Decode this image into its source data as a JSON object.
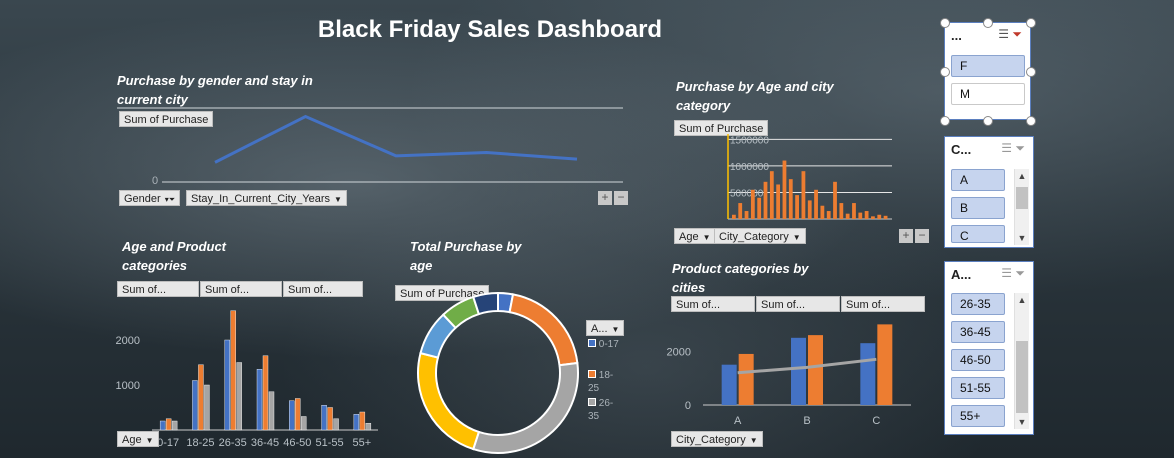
{
  "title": "Black Friday Sales Dashboard",
  "gender_chart": {
    "title": "Purchase by gender and stay in current city",
    "value_button": "Sum of Purchase",
    "row_button_1": "Gender",
    "row_button_2": "Stay_In_Current_City_Years",
    "axis_zero": "0",
    "plus": "+",
    "minus": "−"
  },
  "city_chart": {
    "title": "Purchase by Age and city category",
    "value_button": "Sum of Purchase",
    "row_button_1": "Age",
    "row_button_2": "City_Category",
    "ticks": [
      "1500000",
      "1000000",
      "500000"
    ],
    "plus": "+",
    "minus": "−"
  },
  "age_chart": {
    "title": "Age and Product categories",
    "value_buttons": [
      "Sum of...",
      "Sum of...",
      "Sum of..."
    ],
    "row_button": "Age",
    "ticks": [
      "2000",
      "1000"
    ]
  },
  "donut_chart": {
    "title": "Total Purchase by age",
    "value_button": "Sum of Purchase",
    "legend_button": "A...",
    "legend": [
      {
        "label": "0-17",
        "color": "#4472c4"
      },
      {
        "label": "18-25",
        "color": "#ed7d31"
      },
      {
        "label": "26-35",
        "color": "#a5a5a5"
      }
    ]
  },
  "cities_chart": {
    "title": "Product categories by cities",
    "value_buttons": [
      "Sum of...",
      "Sum of...",
      "Sum of..."
    ],
    "row_button": "City_Category",
    "ticks": [
      "2000",
      "0"
    ]
  },
  "slicers": {
    "gender": {
      "header": "...",
      "items": [
        {
          "label": "F",
          "selected": true
        },
        {
          "label": "M",
          "selected": false
        }
      ]
    },
    "city": {
      "header": "C...",
      "items": [
        {
          "label": "A"
        },
        {
          "label": "B"
        },
        {
          "label": "C"
        }
      ]
    },
    "age": {
      "header": "A...",
      "items": [
        {
          "label": "26-35"
        },
        {
          "label": "36-45"
        },
        {
          "label": "46-50"
        },
        {
          "label": "51-55"
        },
        {
          "label": "55+"
        }
      ]
    }
  },
  "chart_data": [
    {
      "type": "line",
      "title": "Purchase by gender and stay in current city",
      "ylabel": "Sum of Purchase",
      "series": [
        {
          "values": [
            3,
            10,
            4,
            4.5,
            3.5
          ]
        }
      ],
      "color": "#4472c4"
    },
    {
      "type": "bar",
      "title": "Purchase by Age and city category",
      "ylabel": "Sum of Purchase",
      "ylim": [
        0,
        1600000
      ],
      "yticks": [
        500000,
        1000000,
        1500000
      ],
      "values": [
        80000,
        300000,
        150000,
        550000,
        400000,
        700000,
        900000,
        650000,
        1100000,
        750000,
        450000,
        900000,
        350000,
        550000,
        250000,
        150000,
        700000,
        300000,
        100000,
        300000,
        120000,
        150000,
        50000,
        80000,
        60000
      ],
      "color": "#ed7d31"
    },
    {
      "type": "bar",
      "title": "Age and Product categories",
      "categories": [
        "0-17",
        "18-25",
        "26-35",
        "36-45",
        "46-50",
        "51-55",
        "55+"
      ],
      "series": [
        {
          "values": [
            200,
            1100,
            2000,
            1350,
            650,
            550,
            350
          ],
          "color": "#4472c4"
        },
        {
          "values": [
            250,
            1450,
            2650,
            1650,
            700,
            500,
            400
          ],
          "color": "#ed7d31"
        },
        {
          "values": [
            200,
            1000,
            1500,
            850,
            300,
            250,
            150
          ],
          "color": "#a5a5a5"
        }
      ],
      "ylim": [
        0,
        2800
      ],
      "yticks": [
        1000,
        2000
      ]
    },
    {
      "type": "pie",
      "title": "Total Purchase by age",
      "categories": [
        "0-17",
        "18-25",
        "26-35",
        "36-45",
        "46-50",
        "51-55",
        "55+"
      ],
      "values": [
        3,
        20,
        32,
        24,
        9,
        7,
        5
      ],
      "colors": [
        "#4472c4",
        "#ed7d31",
        "#a5a5a5",
        "#ffc000",
        "#5b9bd5",
        "#70ad47",
        "#264478"
      ]
    },
    {
      "type": "bar",
      "title": "Product categories by cities",
      "categories": [
        "A",
        "B",
        "C"
      ],
      "series": [
        {
          "values": [
            1500,
            2500,
            2300
          ],
          "color": "#4472c4"
        },
        {
          "values": [
            1900,
            2600,
            3000
          ],
          "color": "#ed7d31"
        }
      ],
      "trendline": {
        "values": [
          1200,
          1400,
          1700
        ],
        "color": "#a5a5a5"
      },
      "ylim": [
        0,
        3200
      ],
      "yticks": [
        0,
        2000
      ]
    }
  ]
}
